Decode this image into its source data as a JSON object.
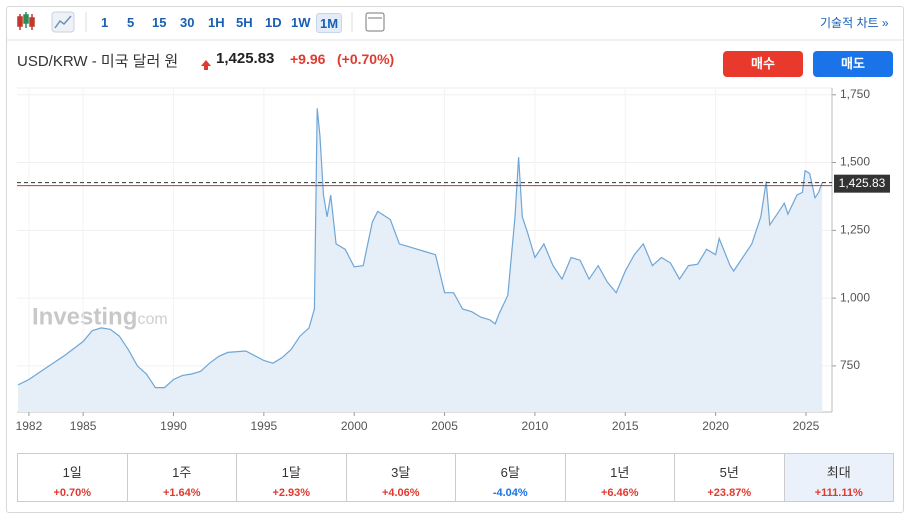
{
  "toolbar": {
    "intervals": [
      "1",
      "5",
      "15",
      "30",
      "1H",
      "5H",
      "1D",
      "1W",
      "1M"
    ],
    "selected_index": 8,
    "link": "기술적 차트 »"
  },
  "header": {
    "title": "USD/KRW - 미국 달러 원",
    "price": "1,425.83",
    "change": "+9.96",
    "change_pct": "(+0.70%)"
  },
  "buttons": {
    "buy": "매수",
    "sell": "매도"
  },
  "watermark": {
    "brand": "Investing",
    "suffix": ".com"
  },
  "chart_data": {
    "type": "line",
    "color": "#6fa6d6",
    "fill": "#e6eef7",
    "x": [
      1981.4,
      1982,
      1983,
      1984,
      1985,
      1985.5,
      1986,
      1986.5,
      1987,
      1987.5,
      1988,
      1988.5,
      1989,
      1989.5,
      1990,
      1990.5,
      1991,
      1991.5,
      1992,
      1992.5,
      1993,
      1994,
      1995,
      1995.5,
      1996,
      1996.5,
      1997,
      1997.5,
      1997.8,
      1997.95,
      1998.1,
      1998.3,
      1998.5,
      1998.7,
      1999,
      1999.5,
      2000,
      2000.5,
      2001,
      2001.3,
      2002,
      2002.5,
      2003,
      2003.5,
      2004,
      2004.5,
      2005,
      2005.5,
      2006,
      2006.5,
      2007,
      2007.5,
      2007.8,
      2008,
      2008.5,
      2008.9,
      2009.1,
      2009.3,
      2009.6,
      2010,
      2010.5,
      2011,
      2011.5,
      2012,
      2012.5,
      2013,
      2013.5,
      2014,
      2014.5,
      2015,
      2015.5,
      2016,
      2016.5,
      2017,
      2017.5,
      2018,
      2018.5,
      2019,
      2019.5,
      2020,
      2020.2,
      2020.8,
      2021,
      2021.5,
      2022,
      2022.5,
      2022.8,
      2023,
      2023.5,
      2023.8,
      2024,
      2024.5,
      2024.8,
      2024.95,
      2025.2,
      2025.5,
      2025.7,
      2025.9
    ],
    "values": [
      680,
      700,
      745,
      790,
      840,
      880,
      890,
      885,
      860,
      810,
      750,
      720,
      670,
      670,
      700,
      715,
      720,
      730,
      760,
      785,
      800,
      805,
      770,
      760,
      780,
      810,
      860,
      890,
      960,
      1700,
      1600,
      1380,
      1300,
      1380,
      1200,
      1180,
      1115,
      1120,
      1280,
      1320,
      1290,
      1200,
      1190,
      1180,
      1170,
      1160,
      1020,
      1020,
      960,
      950,
      930,
      920,
      905,
      940,
      1010,
      1300,
      1520,
      1300,
      1240,
      1150,
      1200,
      1120,
      1070,
      1150,
      1140,
      1070,
      1120,
      1060,
      1020,
      1100,
      1160,
      1200,
      1120,
      1150,
      1130,
      1070,
      1120,
      1125,
      1180,
      1160,
      1220,
      1120,
      1100,
      1150,
      1200,
      1300,
      1430,
      1270,
      1320,
      1350,
      1310,
      1380,
      1390,
      1470,
      1460,
      1370,
      1390,
      1425.83
    ],
    "xlim": [
      1981.34,
      2026.44
    ],
    "ylim": [
      580,
      1775
    ],
    "xticks": [
      1982,
      1985,
      1990,
      1995,
      2000,
      2005,
      2010,
      2015,
      2020,
      2025
    ],
    "yticks": [
      750,
      {
        "value": 1000,
        "label": "1,000"
      },
      {
        "value": 1250,
        "label": "1,250"
      },
      {
        "value": 1500,
        "label": "1,500"
      },
      {
        "value": 1750,
        "label": "1,750"
      }
    ],
    "price_line": {
      "value": 1425.83,
      "label": "1,425.83",
      "color": "#c0392b"
    }
  },
  "performance": [
    {
      "period": "1일",
      "change": "+0.70%"
    },
    {
      "period": "1주",
      "change": "+1.64%"
    },
    {
      "period": "1달",
      "change": "+2.93%"
    },
    {
      "period": "3달",
      "change": "+4.06%"
    },
    {
      "period": "6달",
      "change": "-4.04%"
    },
    {
      "period": "1년",
      "change": "+6.46%"
    },
    {
      "period": "5년",
      "change": "+23.87%"
    },
    {
      "period": "최대",
      "change": "+111.11%",
      "selected": true
    }
  ]
}
